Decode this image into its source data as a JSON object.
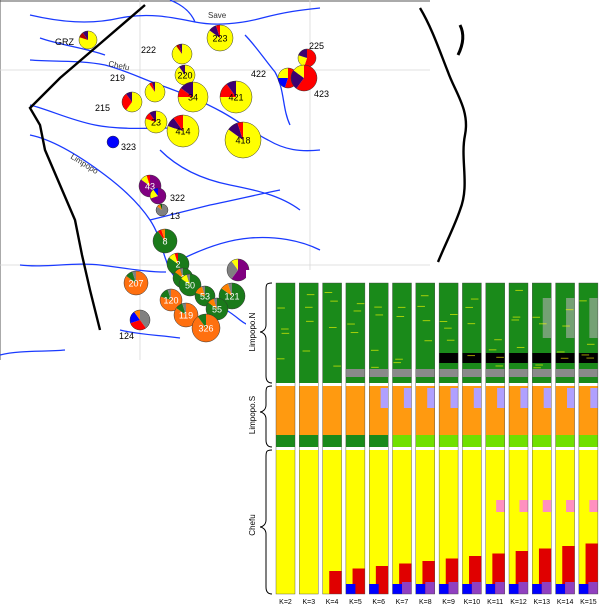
{
  "map": {
    "river_labels": {
      "save": "Save",
      "chefu": "Chefu",
      "limpopo": "Limpopo"
    },
    "sites": [
      {
        "id": "GRZ",
        "label": "GRZ",
        "label_inside": false,
        "shares": [
          [
            "#ffff00",
            0.8
          ],
          [
            "#b00000",
            0.1
          ],
          [
            "#3d0070",
            0.1
          ]
        ]
      },
      {
        "id": "222",
        "label": "222",
        "label_inside": false,
        "shares": [
          [
            "#ffff00",
            0.9
          ],
          [
            "#b00000",
            0.05
          ],
          [
            "#3d0070",
            0.05
          ]
        ]
      },
      {
        "id": "223",
        "label": "223",
        "label_inside": true,
        "shares": [
          [
            "#ffff00",
            0.85
          ],
          [
            "#3d0070",
            0.1
          ],
          [
            "#ff0000",
            0.05
          ]
        ]
      },
      {
        "id": "225",
        "label": "225",
        "label_inside": false,
        "shares": [
          [
            "#ff0000",
            0.55
          ],
          [
            "#ffff00",
            0.25
          ],
          [
            "#3d0070",
            0.2
          ]
        ]
      },
      {
        "id": "422",
        "label": "422",
        "label_inside": false,
        "shares": [
          [
            "#ff0000",
            0.55
          ],
          [
            "#0000ff",
            0.2
          ],
          [
            "#ffff00",
            0.25
          ]
        ]
      },
      {
        "id": "423",
        "label": "423",
        "label_inside": false,
        "shares": [
          [
            "#ff0000",
            0.6
          ],
          [
            "#3d0070",
            0.25
          ],
          [
            "#ffff00",
            0.15
          ]
        ]
      },
      {
        "id": "219",
        "label": "219",
        "label_inside": false,
        "shares": [
          [
            "#ffff00",
            0.9
          ],
          [
            "#ff0000",
            0.05
          ],
          [
            "#3d0070",
            0.05
          ]
        ]
      },
      {
        "id": "220",
        "label": "220",
        "label_inside": true,
        "shares": [
          [
            "#ffff00",
            0.9
          ],
          [
            "#3d0070",
            0.1
          ]
        ]
      },
      {
        "id": "215",
        "label": "215",
        "label_inside": false,
        "shares": [
          [
            "#ffff00",
            0.6
          ],
          [
            "#ff0000",
            0.3
          ],
          [
            "#3d0070",
            0.1
          ]
        ]
      },
      {
        "id": "34",
        "label": "34",
        "label_inside": true,
        "shares": [
          [
            "#ffff00",
            0.75
          ],
          [
            "#ff0000",
            0.1
          ],
          [
            "#3d0070",
            0.15
          ]
        ]
      },
      {
        "id": "421",
        "label": "421",
        "label_inside": true,
        "shares": [
          [
            "#ffff00",
            0.75
          ],
          [
            "#ff0000",
            0.15
          ],
          [
            "#3d0070",
            0.1
          ]
        ]
      },
      {
        "id": "23",
        "label": "23",
        "label_inside": true,
        "shares": [
          [
            "#ffff00",
            0.8
          ],
          [
            "#ff0000",
            0.1
          ],
          [
            "#3d0070",
            0.1
          ]
        ]
      },
      {
        "id": "414",
        "label": "414",
        "label_inside": true,
        "shares": [
          [
            "#ffff00",
            0.8
          ],
          [
            "#3d0070",
            0.1
          ],
          [
            "#ff0000",
            0.1
          ]
        ]
      },
      {
        "id": "418",
        "label": "418",
        "label_inside": true,
        "shares": [
          [
            "#ffff00",
            0.85
          ],
          [
            "#3d0070",
            0.1
          ],
          [
            "#ff0000",
            0.05
          ]
        ]
      },
      {
        "id": "323",
        "label": "323",
        "label_inside": false,
        "shares": [
          [
            "#0000ff",
            1.0
          ]
        ]
      },
      {
        "id": "43",
        "label": "43",
        "label_inside": true,
        "shares": [
          [
            "#800080",
            0.85
          ],
          [
            "#ffff00",
            0.1
          ],
          [
            "#ff0000",
            0.05
          ]
        ]
      },
      {
        "id": "322",
        "label": "322",
        "label_inside": false,
        "shares": [
          [
            "#800080",
            0.7
          ],
          [
            "#ffff00",
            0.2
          ],
          [
            "#0000ff",
            0.1
          ]
        ]
      },
      {
        "id": "13",
        "label": "13",
        "label_inside": false,
        "shares": [
          [
            "#808080",
            0.85
          ],
          [
            "#ff8000",
            0.1
          ],
          [
            "#006400",
            0.05
          ]
        ]
      },
      {
        "id": "8",
        "label": "8",
        "label_inside": true,
        "shares": [
          [
            "#1a7a1a",
            0.9
          ],
          [
            "#ff0000",
            0.05
          ],
          [
            "#ff8000",
            0.05
          ]
        ]
      },
      {
        "id": "2",
        "label": "2",
        "label_inside": true,
        "shares": [
          [
            "#1a7a1a",
            0.85
          ],
          [
            "#ffff00",
            0.1
          ],
          [
            "#ff0000",
            0.05
          ]
        ]
      },
      {
        "id": "1",
        "label": "1",
        "label_inside": true,
        "shares": [
          [
            "#1a7a1a",
            0.85
          ],
          [
            "#ff8000",
            0.1
          ],
          [
            "#808080",
            0.05
          ]
        ]
      },
      {
        "id": "50",
        "label": "50",
        "label_inside": true,
        "shares": [
          [
            "#1a7a1a",
            0.85
          ],
          [
            "#ffff00",
            0.1
          ],
          [
            "#808080",
            0.05
          ]
        ]
      },
      {
        "id": "purple-se",
        "label": "",
        "label_inside": false,
        "shares": [
          [
            "#800080",
            0.6
          ],
          [
            "#808080",
            0.3
          ],
          [
            "#ffff00",
            0.1
          ]
        ]
      },
      {
        "id": "121",
        "label": "121",
        "label_inside": true,
        "shares": [
          [
            "#1a7a1a",
            0.85
          ],
          [
            "#ff8000",
            0.1
          ],
          [
            "#808080",
            0.05
          ]
        ]
      },
      {
        "id": "53",
        "label": "53",
        "label_inside": true,
        "shares": [
          [
            "#1a7a1a",
            0.8
          ],
          [
            "#ff8000",
            0.15
          ],
          [
            "#808080",
            0.05
          ]
        ]
      },
      {
        "id": "55",
        "label": "55",
        "label_inside": true,
        "shares": [
          [
            "#1a7a1a",
            0.85
          ],
          [
            "#ff8000",
            0.1
          ],
          [
            "#808080",
            0.05
          ]
        ]
      },
      {
        "id": "207",
        "label": "207",
        "label_inside": true,
        "shares": [
          [
            "#ff7010",
            0.85
          ],
          [
            "#1a7a1a",
            0.1
          ],
          [
            "#808080",
            0.05
          ]
        ]
      },
      {
        "id": "120",
        "label": "120",
        "label_inside": true,
        "shares": [
          [
            "#ff7010",
            0.8
          ],
          [
            "#1a7a1a",
            0.15
          ],
          [
            "#808080",
            0.05
          ]
        ]
      },
      {
        "id": "119",
        "label": "119",
        "label_inside": true,
        "shares": [
          [
            "#ff7010",
            0.85
          ],
          [
            "#1a7a1a",
            0.1
          ],
          [
            "#808080",
            0.05
          ]
        ]
      },
      {
        "id": "326",
        "label": "326",
        "label_inside": true,
        "shares": [
          [
            "#ff7010",
            0.9
          ],
          [
            "#1a7a1a",
            0.1
          ]
        ]
      },
      {
        "id": "124",
        "label": "124",
        "label_inside": false,
        "shares": [
          [
            "#808080",
            0.4
          ],
          [
            "#ff0000",
            0.3
          ],
          [
            "#0000ff",
            0.2
          ],
          [
            "#ff8000",
            0.1
          ]
        ]
      }
    ]
  },
  "structure_panel": {
    "group_labels": [
      "Limpopo.N",
      "Limpopo.S",
      "Chefu"
    ],
    "k_labels": [
      "K=2",
      "K=3",
      "K=4",
      "K=5",
      "K=6",
      "K=7",
      "K=8",
      "K=9",
      "K=10",
      "K=11",
      "K=12",
      "K=13",
      "K=14",
      "K=15"
    ],
    "cluster_colors": {
      "green": "#1a8a1a",
      "yellow": "#ffff00",
      "orange": "#ff9a10",
      "red": "#e00000",
      "blue": "#0000ff",
      "purple": "#9040c0",
      "gray": "#8a8a8a",
      "black": "#000000",
      "pink": "#ff90c0",
      "lightgreen": "#70e000",
      "lavender": "#b0a0ff"
    }
  }
}
